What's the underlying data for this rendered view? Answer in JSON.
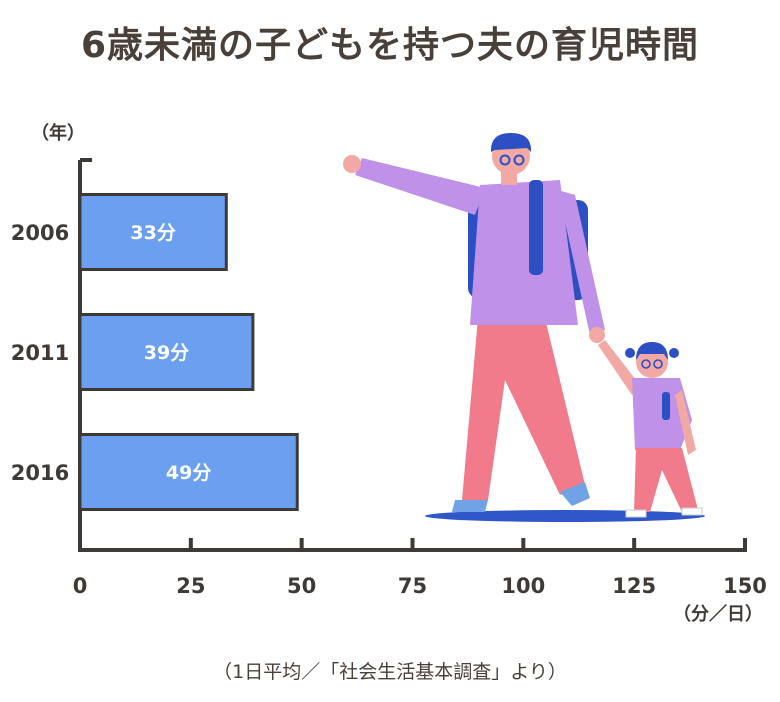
{
  "title": "6歳未満の子どもを持つ夫の育児時間",
  "source": "（1日平均／「社会生活基本調査」より）",
  "chart_data": {
    "type": "bar",
    "orientation": "horizontal",
    "title": "6歳未満の子どもを持つ夫の育児時間",
    "categories": [
      "2006",
      "2011",
      "2016"
    ],
    "values": [
      33,
      39,
      49
    ],
    "value_labels": [
      "33分",
      "39分",
      "49分"
    ],
    "xlabel": "（分／日）",
    "ylabel": "（年）",
    "xlim": [
      0,
      150
    ],
    "xticks": [
      0,
      25,
      50,
      75,
      100,
      125,
      150
    ],
    "grid": false,
    "bar_color": "#6b9ff0"
  }
}
